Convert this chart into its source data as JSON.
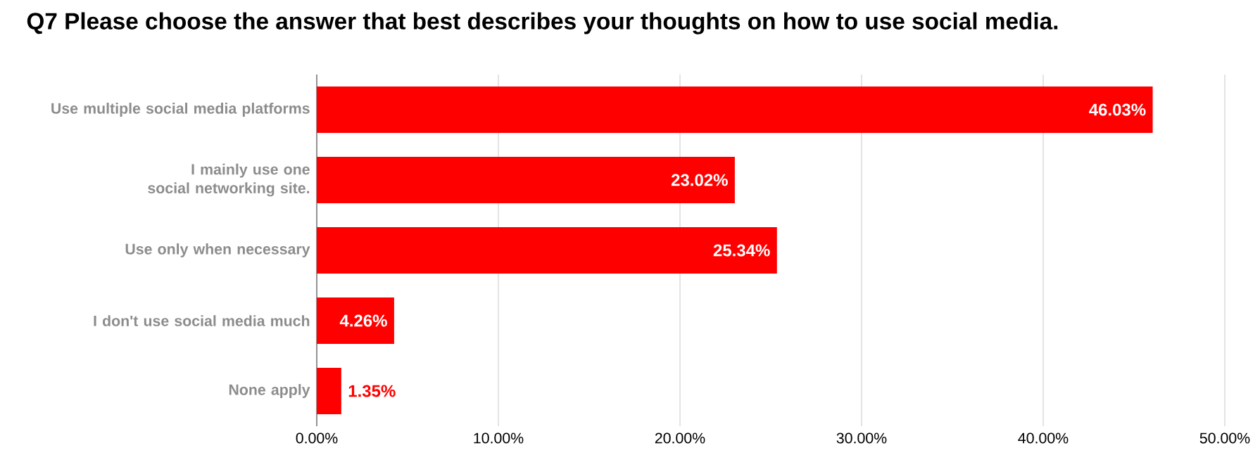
{
  "chart_data": {
    "type": "bar",
    "orientation": "horizontal",
    "title": "Q7 Please choose the answer that best describes your thoughts on how to use social media.",
    "categories": [
      "Use multiple social media platforms",
      "I mainly use one social networking site.",
      "Use only when necessary",
      "I don't use social media much",
      "None apply"
    ],
    "values": [
      46.03,
      23.02,
      25.34,
      4.26,
      1.35
    ],
    "value_labels": [
      "46.03%",
      "23.02%",
      "25.34%",
      "4.26%",
      "1.35%"
    ],
    "color": "#ff0000",
    "xlim": [
      0,
      50
    ],
    "xticks": [
      {
        "value": 0,
        "label": "0.00%"
      },
      {
        "value": 10,
        "label": "10.00%"
      },
      {
        "value": 20,
        "label": "20.00%"
      },
      {
        "value": 30,
        "label": "30.00%"
      },
      {
        "value": 40,
        "label": "40.00%"
      },
      {
        "value": 50,
        "label": "50.00%"
      }
    ],
    "grid": "x"
  }
}
